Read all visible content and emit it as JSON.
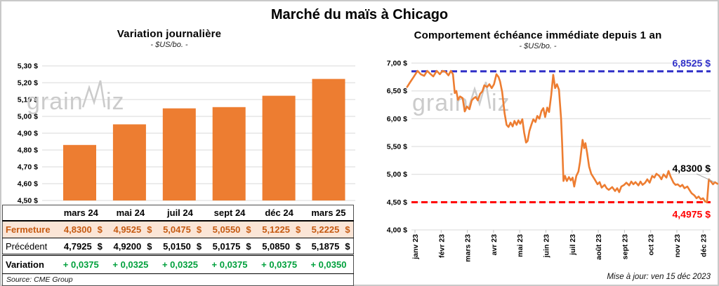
{
  "page": {
    "title": "Marché du maïs à Chicago",
    "source_note": "Source: CME Group",
    "updated_note": "Mise à jour: ven 15 déc 2023",
    "watermark": {
      "left": "grain",
      "right": "iz"
    }
  },
  "colors": {
    "orange": "#ED7D31",
    "blue": "#3030C8",
    "red": "#FF0000",
    "green": "#00A03C",
    "brown": "#C55A11",
    "peach": "#FBE5D6",
    "grid": "#D9D9D9",
    "axis": "#BFBFBF",
    "watermark": "#CBCBCB",
    "leader": "#A6A6A6"
  },
  "chart_data": [
    {
      "type": "bar",
      "title": "Variation journalière",
      "subtitle": "- $US/bo. -",
      "categories": [
        "mars 24",
        "mai 24",
        "juil 24",
        "sept 24",
        "déc 24",
        "mars 25"
      ],
      "values": [
        4.83,
        4.9525,
        5.0475,
        5.055,
        5.1225,
        5.2225
      ],
      "ylim": [
        4.5,
        5.3
      ],
      "grid": true,
      "yticks": [
        {
          "v": 5.3,
          "label": "5,30 $"
        },
        {
          "v": 5.2,
          "label": "5,20 $"
        },
        {
          "v": 5.1,
          "label": "5,10 $"
        },
        {
          "v": 5.0,
          "label": "5,00 $"
        },
        {
          "v": 4.9,
          "label": "4,90 $"
        },
        {
          "v": 4.8,
          "label": "4,80 $"
        },
        {
          "v": 4.7,
          "label": "4,70 $"
        },
        {
          "v": 4.6,
          "label": "4,60 $"
        },
        {
          "v": 4.5,
          "label": "4,50 $"
        }
      ]
    },
    {
      "type": "line",
      "title": "Comportement échéance immédiate depuis 1 an",
      "subtitle": "- $US/bo. -",
      "ylim": [
        4.0,
        7.0
      ],
      "grid": true,
      "yticks": [
        {
          "v": 7.0,
          "label": "7,00 $"
        },
        {
          "v": 6.5,
          "label": "6,50 $"
        },
        {
          "v": 6.0,
          "label": "6,00 $"
        },
        {
          "v": 5.5,
          "label": "5,50 $"
        },
        {
          "v": 5.0,
          "label": "5,00 $"
        },
        {
          "v": 4.5,
          "label": "4,50 $"
        },
        {
          "v": 4.0,
          "label": "4,00 $"
        }
      ],
      "x_labels": [
        "janv 23",
        "févr 23",
        "mars 23",
        "avr 23",
        "mai 23",
        "juin 23",
        "juil 23",
        "août 23",
        "sept 23",
        "oct 23",
        "nov 23",
        "déc 23"
      ],
      "ref_lines": [
        {
          "value": 6.8525,
          "label": "6,8525 $",
          "color": "#3030C8",
          "style": "dashed",
          "label_pos": "above"
        },
        {
          "value": 4.4975,
          "label": "4,4975 $",
          "color": "#FF0000",
          "style": "dashed",
          "label_pos": "below"
        }
      ],
      "last_point_label": "4,8300 $",
      "last_point_value": 4.83,
      "series": [
        {
          "name": "échéance immédiate",
          "color": "#ED7D31",
          "points": [
            [
              -0.3,
              6.57
            ],
            [
              -0.18,
              6.66
            ],
            [
              -0.05,
              6.75
            ],
            [
              0.1,
              6.86
            ],
            [
              0.22,
              6.8
            ],
            [
              0.35,
              6.77
            ],
            [
              0.47,
              6.86
            ],
            [
              0.6,
              6.8
            ],
            [
              0.7,
              6.76
            ],
            [
              0.83,
              6.86
            ],
            [
              0.95,
              6.8
            ],
            [
              1.05,
              6.86
            ],
            [
              1.17,
              6.84
            ],
            [
              1.28,
              6.78
            ],
            [
              1.37,
              6.86
            ],
            [
              1.45,
              6.8
            ],
            [
              1.52,
              6.46
            ],
            [
              1.58,
              6.5
            ],
            [
              1.64,
              6.34
            ],
            [
              1.72,
              6.4
            ],
            [
              1.82,
              6.37
            ],
            [
              1.9,
              6.13
            ],
            [
              1.98,
              6.22
            ],
            [
              2.08,
              6.17
            ],
            [
              2.17,
              6.33
            ],
            [
              2.25,
              6.37
            ],
            [
              2.32,
              6.39
            ],
            [
              2.4,
              6.33
            ],
            [
              2.49,
              6.45
            ],
            [
              2.57,
              6.49
            ],
            [
              2.65,
              6.6
            ],
            [
              2.76,
              6.57
            ],
            [
              2.84,
              6.62
            ],
            [
              2.93,
              6.55
            ],
            [
              3.02,
              6.62
            ],
            [
              3.11,
              6.8
            ],
            [
              3.19,
              6.75
            ],
            [
              3.25,
              6.67
            ],
            [
              3.33,
              6.48
            ],
            [
              3.42,
              6.1
            ],
            [
              3.5,
              5.89
            ],
            [
              3.57,
              5.85
            ],
            [
              3.65,
              5.93
            ],
            [
              3.73,
              5.86
            ],
            [
              3.8,
              5.96
            ],
            [
              3.88,
              5.89
            ],
            [
              3.95,
              5.97
            ],
            [
              4.02,
              5.91
            ],
            [
              4.1,
              5.99
            ],
            [
              4.17,
              5.75
            ],
            [
              4.24,
              5.57
            ],
            [
              4.3,
              5.6
            ],
            [
              4.37,
              5.78
            ],
            [
              4.45,
              5.9
            ],
            [
              4.52,
              5.99
            ],
            [
              4.6,
              5.94
            ],
            [
              4.67,
              6.05
            ],
            [
              4.75,
              6.0
            ],
            [
              4.83,
              6.14
            ],
            [
              4.9,
              6.19
            ],
            [
              4.97,
              6.03
            ],
            [
              5.05,
              6.2
            ],
            [
              5.12,
              6.12
            ],
            [
              5.2,
              6.42
            ],
            [
              5.28,
              6.79
            ],
            [
              5.35,
              6.55
            ],
            [
              5.42,
              6.62
            ],
            [
              5.5,
              6.52
            ],
            [
              5.58,
              6.0
            ],
            [
              5.62,
              5.55
            ],
            [
              5.67,
              4.88
            ],
            [
              5.73,
              4.97
            ],
            [
              5.8,
              4.88
            ],
            [
              5.88,
              4.95
            ],
            [
              5.95,
              4.89
            ],
            [
              6.02,
              4.94
            ],
            [
              6.08,
              4.78
            ],
            [
              6.16,
              4.97
            ],
            [
              6.24,
              5.05
            ],
            [
              6.3,
              5.22
            ],
            [
              6.4,
              5.62
            ],
            [
              6.46,
              5.47
            ],
            [
              6.51,
              5.56
            ],
            [
              6.57,
              5.39
            ],
            [
              6.65,
              5.14
            ],
            [
              6.73,
              5.01
            ],
            [
              6.86,
              4.91
            ],
            [
              6.97,
              4.82
            ],
            [
              7.05,
              4.86
            ],
            [
              7.13,
              4.76
            ],
            [
              7.24,
              4.81
            ],
            [
              7.32,
              4.75
            ],
            [
              7.4,
              4.72
            ],
            [
              7.53,
              4.77
            ],
            [
              7.64,
              4.7
            ],
            [
              7.72,
              4.75
            ],
            [
              7.8,
              4.68
            ],
            [
              7.88,
              4.78
            ],
            [
              7.99,
              4.81
            ],
            [
              8.07,
              4.85
            ],
            [
              8.18,
              4.8
            ],
            [
              8.26,
              4.87
            ],
            [
              8.34,
              4.82
            ],
            [
              8.42,
              4.86
            ],
            [
              8.53,
              4.8
            ],
            [
              8.61,
              4.87
            ],
            [
              8.69,
              4.81
            ],
            [
              8.79,
              4.85
            ],
            [
              8.87,
              4.91
            ],
            [
              8.96,
              4.85
            ],
            [
              9.06,
              4.97
            ],
            [
              9.14,
              4.94
            ],
            [
              9.22,
              5.01
            ],
            [
              9.33,
              4.97
            ],
            [
              9.41,
              4.91
            ],
            [
              9.49,
              5.0
            ],
            [
              9.6,
              4.94
            ],
            [
              9.68,
              5.06
            ],
            [
              9.76,
              4.96
            ],
            [
              9.87,
              4.85
            ],
            [
              9.95,
              4.81
            ],
            [
              10.03,
              4.82
            ],
            [
              10.13,
              4.78
            ],
            [
              10.21,
              4.81
            ],
            [
              10.29,
              4.75
            ],
            [
              10.4,
              4.78
            ],
            [
              10.48,
              4.72
            ],
            [
              10.56,
              4.66
            ],
            [
              10.67,
              4.62
            ],
            [
              10.75,
              4.57
            ],
            [
              10.83,
              4.6
            ],
            [
              10.92,
              4.55
            ],
            [
              11.0,
              4.57
            ],
            [
              11.08,
              4.51
            ],
            [
              11.15,
              4.4975
            ],
            [
              11.22,
              4.91
            ],
            [
              11.3,
              4.87
            ],
            [
              11.38,
              4.82
            ],
            [
              11.45,
              4.86
            ],
            [
              11.55,
              4.83
            ]
          ]
        }
      ]
    }
  ],
  "table": {
    "columns": [
      "mars 24",
      "mai 24",
      "juil 24",
      "sept 24",
      "déc 24",
      "mars 25"
    ],
    "rows": [
      {
        "label": "Fermeture",
        "style": "fermeture",
        "values": [
          "4,8300 $",
          "4,9525 $",
          "5,0475 $",
          "5,0550 $",
          "5,1225 $",
          "5,2225 $"
        ]
      },
      {
        "label": "Précédent",
        "style": "precedent",
        "values": [
          "4,7925 $",
          "4,9200 $",
          "5,0150 $",
          "5,0175 $",
          "5,0850 $",
          "5,1875 $"
        ]
      },
      {
        "label": "Variation",
        "style": "variation",
        "values": [
          "+ 0,0375",
          "+ 0,0325",
          "+ 0,0325",
          "+ 0,0375",
          "+ 0,0375",
          "+ 0,0350"
        ]
      }
    ]
  }
}
